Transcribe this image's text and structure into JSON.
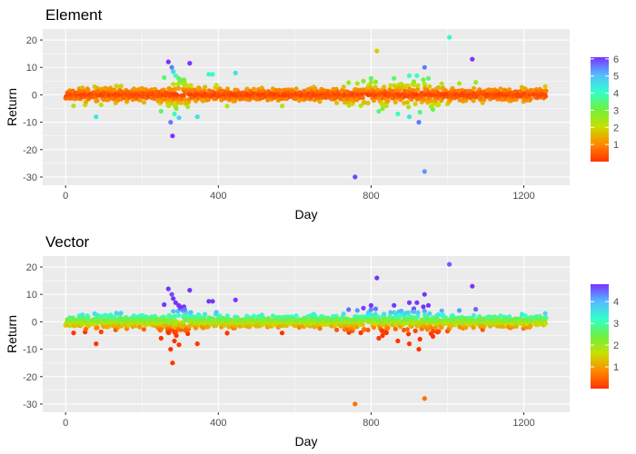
{
  "chart_data": [
    {
      "type": "scatter",
      "title": "Element",
      "xlabel": "Day",
      "ylabel": "Return",
      "xlim": [
        -60,
        1320
      ],
      "ylim": [
        -33,
        24
      ],
      "x_ticks": [
        0,
        400,
        800,
        1200
      ],
      "x_tick_labels": [
        "0",
        "400",
        "800",
        "1200"
      ],
      "y_ticks": [
        20,
        10,
        0,
        -10,
        -20,
        -30
      ],
      "y_tick_labels": [
        "20",
        "10",
        "0",
        "-10",
        "-20",
        "-30"
      ],
      "grid": true,
      "legend": {
        "placement": "right",
        "type": "colorbar",
        "min": 0,
        "max": 6.1,
        "ticks": [
          1,
          2,
          3,
          4,
          5,
          6
        ],
        "tick_labels": [
          "1",
          "2",
          "3",
          "4",
          "5",
          "6"
        ]
      },
      "color_scale": [
        "#FF3300",
        "#FF8800",
        "#C8E000",
        "#70F040",
        "#33FFCC",
        "#55BBFF",
        "#7733FF"
      ],
      "n_days": 1259,
      "seed": 11,
      "series": [
        {
          "points": [
            [
              278,
              10
            ],
            [
              282,
              8.5
            ],
            [
              288,
              7
            ],
            [
              296,
              6
            ],
            [
              300,
              5.5
            ],
            [
              310,
              5.5
            ],
            [
              375,
              7.5
            ],
            [
              385,
              7.5
            ],
            [
              445,
              8
            ],
            [
              312,
              4.5
            ],
            [
              275,
              -10
            ],
            [
              280,
              -15
            ],
            [
              285,
              -7
            ],
            [
              345,
              -8
            ],
            [
              290,
              -5
            ],
            [
              80,
              -8
            ],
            [
              250,
              -6
            ],
            [
              270,
              -4
            ],
            [
              815,
              16
            ],
            [
              1005,
              21
            ],
            [
              1065,
              13
            ],
            [
              940,
              10
            ],
            [
              758,
              -30
            ],
            [
              940,
              -28
            ],
            [
              820,
              -6
            ],
            [
              900,
              -8
            ],
            [
              925,
              -10
            ],
            [
              840,
              -4
            ],
            [
              860,
              6
            ],
            [
              900,
              7
            ],
            [
              950,
              6
            ],
            [
              920,
              7
            ],
            [
              780,
              5
            ],
            [
              800,
              6
            ],
            [
              830,
              -5
            ],
            [
              870,
              -7
            ]
          ]
        }
      ]
    },
    {
      "type": "scatter",
      "title": "Vector",
      "xlabel": "Day",
      "ylabel": "Return",
      "xlim": [
        -60,
        1320
      ],
      "ylim": [
        -33,
        24
      ],
      "x_ticks": [
        0,
        400,
        800,
        1200
      ],
      "x_tick_labels": [
        "0",
        "400",
        "800",
        "1200"
      ],
      "y_ticks": [
        20,
        10,
        0,
        -10,
        -20,
        -30
      ],
      "y_tick_labels": [
        "20",
        "10",
        "0",
        "-10",
        "-20",
        "-30"
      ],
      "grid": true,
      "legend": {
        "placement": "right",
        "type": "colorbar",
        "min": 0,
        "max": 4.8,
        "ticks": [
          1,
          2,
          3,
          4
        ],
        "tick_labels": [
          "1",
          "2",
          "3",
          "4"
        ]
      },
      "color_scale": [
        "#FF3300",
        "#FF8800",
        "#C8E000",
        "#70F040",
        "#33FFCC",
        "#55BBFF",
        "#7733FF"
      ],
      "n_days": 1259,
      "seed": 11,
      "series": [
        {
          "points": [
            [
              278,
              10
            ],
            [
              282,
              8.5
            ],
            [
              288,
              7
            ],
            [
              296,
              6
            ],
            [
              300,
              5.5
            ],
            [
              310,
              5.5
            ],
            [
              375,
              7.5
            ],
            [
              385,
              7.5
            ],
            [
              445,
              8
            ],
            [
              312,
              4.5
            ],
            [
              275,
              -10
            ],
            [
              280,
              -15
            ],
            [
              285,
              -7
            ],
            [
              345,
              -8
            ],
            [
              290,
              -5
            ],
            [
              80,
              -8
            ],
            [
              250,
              -6
            ],
            [
              270,
              -4
            ],
            [
              815,
              16
            ],
            [
              1005,
              21
            ],
            [
              1065,
              13
            ],
            [
              940,
              10
            ],
            [
              758,
              -30
            ],
            [
              940,
              -28
            ],
            [
              820,
              -6
            ],
            [
              900,
              -8
            ],
            [
              925,
              -10
            ],
            [
              840,
              -4
            ],
            [
              860,
              6
            ],
            [
              900,
              7
            ],
            [
              950,
              6
            ],
            [
              920,
              7
            ],
            [
              780,
              5
            ],
            [
              800,
              6
            ],
            [
              830,
              -5
            ],
            [
              870,
              -7
            ]
          ]
        }
      ]
    }
  ]
}
